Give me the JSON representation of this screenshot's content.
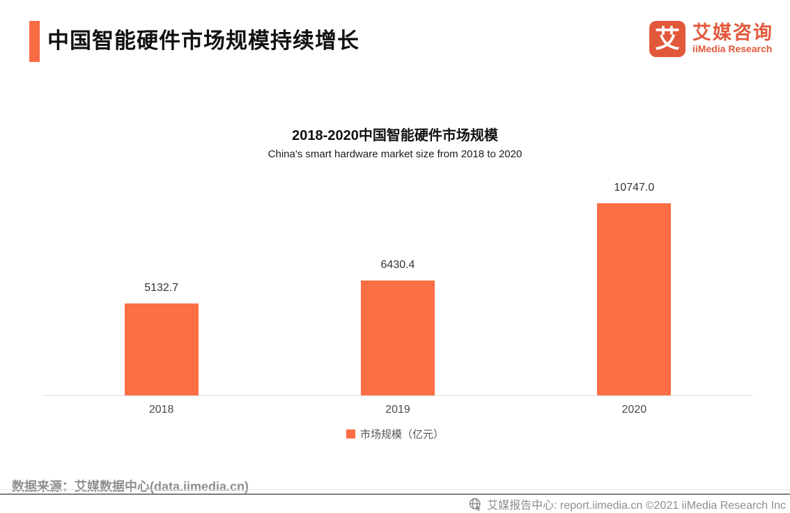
{
  "header": {
    "title": "中国智能硬件市场规模持续增长",
    "logo": {
      "icon_char": "艾",
      "brand_cn": "艾媒咨询",
      "brand_en": "iiMedia Research"
    }
  },
  "chart_data": {
    "type": "bar",
    "title": "2018-2020中国智能硬件市场规模",
    "subtitle": "China's smart hardware market size from 2018 to 2020",
    "categories": [
      "2018",
      "2019",
      "2020"
    ],
    "values": [
      5132.7,
      6430.4,
      10747.0
    ],
    "value_labels": [
      "5132.7",
      "6430.4",
      "10747.0"
    ],
    "series_name": "市场规模（亿元）",
    "unit": "亿元",
    "ylim": [
      0,
      11000
    ],
    "y_axis_visible": false,
    "grid": false,
    "legend_position": "bottom",
    "bar_color": "#FC6E44"
  },
  "legend": {
    "items": [
      {
        "label": "市场规模（亿元）",
        "color": "#FC6E44"
      }
    ]
  },
  "source": {
    "text": "数据来源：艾媒数据中心(data.iimedia.cn)"
  },
  "footer": {
    "icon": "globe-cursor-icon",
    "text": "艾媒报告中心: report.iimedia.cn ©2021  iiMedia Research Inc"
  },
  "colors": {
    "accent": "#F96B45",
    "bar": "#FC6E44",
    "logo_brand": "#E2583A",
    "title_text": "#111111",
    "gray_text": "#8E8E8E"
  }
}
